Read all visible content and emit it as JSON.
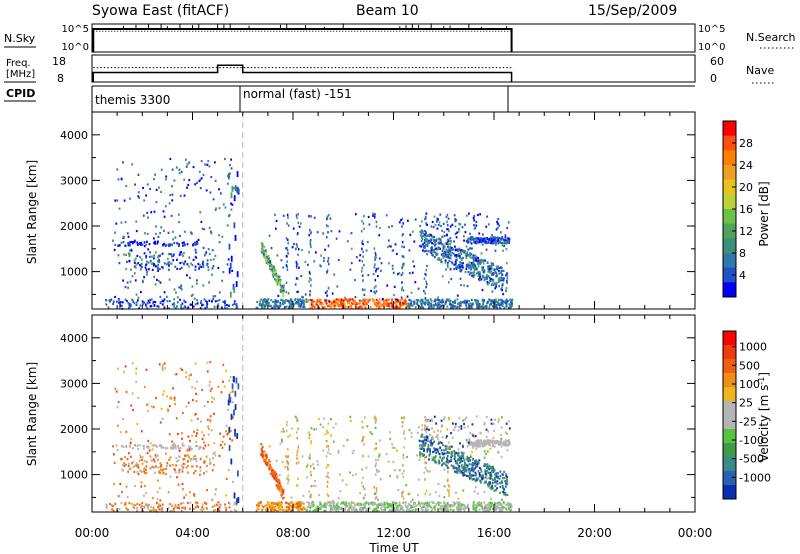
{
  "header": {
    "station": "Syowa East (fitACF)",
    "beam": "Beam 10",
    "date": "15/Sep/2009"
  },
  "nsky_panel": {
    "left_label": "N.Sky",
    "right_label": "N.Search",
    "ticks_left": [
      "10^5",
      "10^0"
    ],
    "ticks_right": [
      "10^5",
      "10^0"
    ],
    "active_end_hour": 16.7,
    "solid_level": 0.82,
    "dotted_level": 0.74
  },
  "freq_panel": {
    "left_label_top": "Freq.",
    "left_label_bottom": "[MHz]",
    "right_label": "Nave",
    "ticks_left": [
      "18",
      "8"
    ],
    "ticks_right": [
      "60",
      "0"
    ],
    "freq_steps": [
      {
        "from": 0.05,
        "to": 5.0,
        "mhz": 11.5
      },
      {
        "from": 5.0,
        "to": 6.0,
        "mhz": 14.2
      },
      {
        "from": 6.0,
        "to": 16.7,
        "mhz": 11.5
      }
    ],
    "nave_level": 32,
    "active_end_hour": 16.7
  },
  "cpid": {
    "label": "CPID",
    "segments": [
      {
        "from": 0.05,
        "to": 6.0,
        "name": "themis 3300"
      },
      {
        "from": 6.0,
        "to": 16.7,
        "name": "normal (fast) -151"
      }
    ]
  },
  "chart_data": [
    {
      "type": "heatmap",
      "panel": "power",
      "ylabel": "Slant Range [km]",
      "xlabel": "Time UT",
      "x_ticks": [
        "00:00",
        "04:00",
        "08:00",
        "12:00",
        "16:00",
        "20:00",
        "00:00"
      ],
      "x_range_hours": [
        0,
        24
      ],
      "y_ticks": [
        "1000",
        "2000",
        "3000",
        "4000"
      ],
      "y_range_km": [
        180,
        4500
      ],
      "colorbar": {
        "label": "Power [dB]",
        "tick_labels": [
          "4",
          "8",
          "12",
          "16",
          "20",
          "24",
          "28"
        ],
        "tick_values": [
          4,
          8,
          12,
          16,
          20,
          24,
          28
        ],
        "range": [
          0,
          32
        ],
        "colors": [
          "#0000ff",
          "#1e50c8",
          "#2f78a8",
          "#3c8f7a",
          "#4fa35a",
          "#6cc14a",
          "#b7d23b",
          "#e8c31f",
          "#f0a020",
          "#ff7f00",
          "#ff5010",
          "#ff0000"
        ]
      },
      "marker_hour": 6.0
    },
    {
      "type": "heatmap",
      "panel": "velocity",
      "ylabel": "Slant Range [km]",
      "xlabel": "Time UT",
      "x_ticks": [
        "00:00",
        "04:00",
        "08:00",
        "12:00",
        "16:00",
        "20:00",
        "00:00"
      ],
      "x_range_hours": [
        0,
        24
      ],
      "y_ticks": [
        "1000",
        "2000",
        "3000",
        "4000"
      ],
      "y_range_km": [
        180,
        4500
      ],
      "colorbar": {
        "label_main": "Velocity",
        "label_unit": "[m s",
        "label_exp": "-1",
        "label_close": "]",
        "tick_labels": [
          "1000",
          "500",
          "100",
          "25",
          "-25",
          "-100",
          "-500",
          "-1000"
        ],
        "colors": [
          "#0a2db4",
          "#2a5fb4",
          "#3b8a8a",
          "#3f9a4c",
          "#59c23e",
          "#b5b5b5",
          "#b5b5b5",
          "#f0b420",
          "#f08e18",
          "#f06010",
          "#f03c10",
          "#ff0000"
        ]
      },
      "marker_hour": 6.0
    }
  ]
}
